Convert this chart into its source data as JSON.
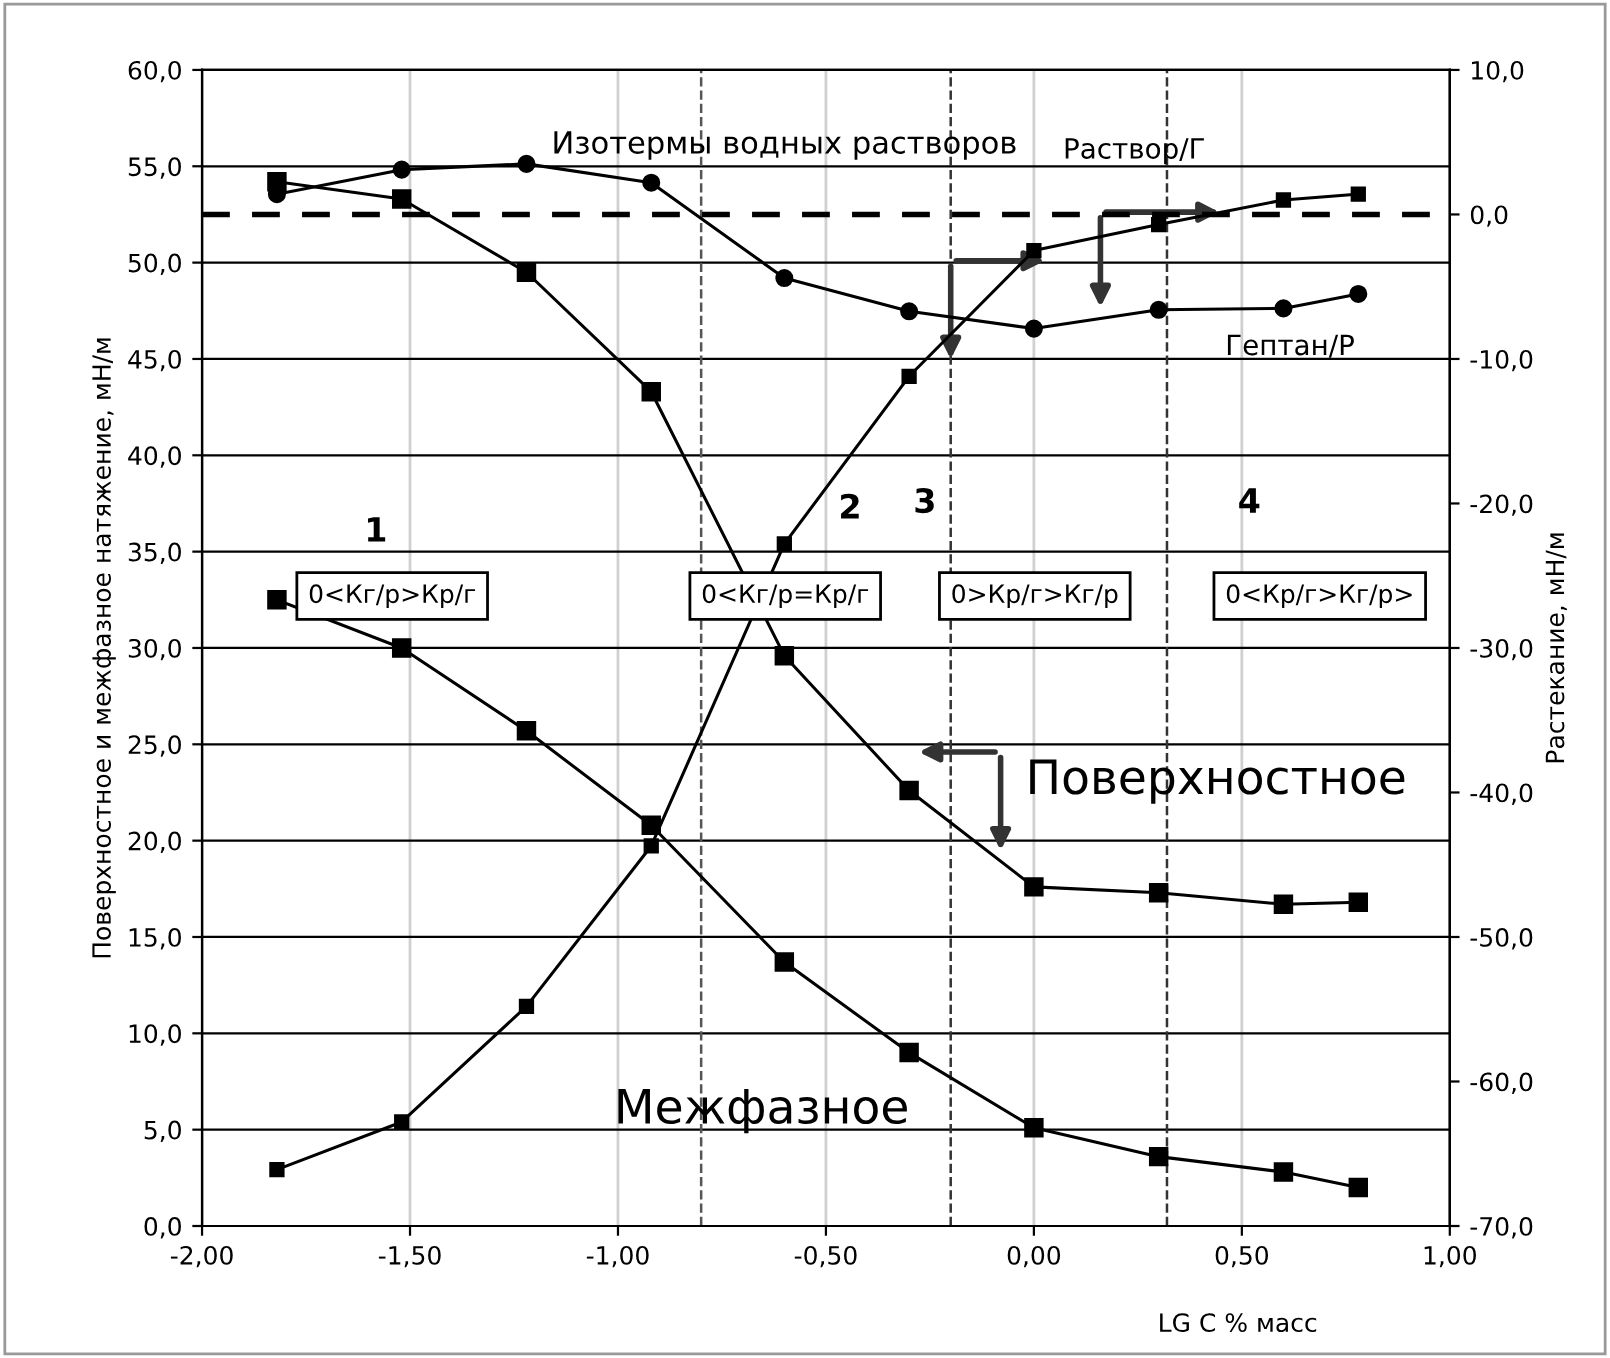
{
  "chart_data": {
    "type": "line",
    "title": "Изотермы водных растворов",
    "xlabel": "LG C % масс",
    "ylabel": "Поверхностное и межфазное натяжение, мН/м",
    "y2label": "Растекание, мН/м",
    "x": [
      -1.82,
      -1.52,
      -1.22,
      -0.92,
      -0.6,
      -0.3,
      0.0,
      0.3,
      0.6,
      0.78
    ],
    "series": [
      {
        "name": "Поверхностное",
        "color": "#000000",
        "marker": "square",
        "values": [
          54.2,
          53.3,
          49.5,
          43.3,
          29.6,
          22.6,
          17.6,
          17.3,
          16.7,
          16.8
        ]
      },
      {
        "name": "Межфазное",
        "color": "#000000",
        "marker": "square",
        "values": [
          32.5,
          30.0,
          25.7,
          20.8,
          13.7,
          9.0,
          5.1,
          3.6,
          2.8,
          2.0
        ]
      },
      {
        "name": "Раствор/Г",
        "color": "#000000",
        "marker": "square",
        "axis": "y2",
        "values": [
          -66.1,
          -62.8,
          -54.8,
          -43.7,
          -22.8,
          -11.2,
          -2.5,
          -0.7,
          1.0,
          1.4
        ]
      },
      {
        "name": "Гептан/Р",
        "color": "#000000",
        "marker": "circle",
        "axis": "y2",
        "values": [
          1.4,
          3.1,
          3.5,
          2.2,
          -4.4,
          -6.7,
          -7.9,
          -6.6,
          -6.5,
          -5.5
        ]
      }
    ],
    "xlim": [
      -2.0,
      1.0
    ],
    "xticks": [
      {
        "value": -2.0,
        "label": "-2,00"
      },
      {
        "value": -1.5,
        "label": "-1,50"
      },
      {
        "value": -1.0,
        "label": "-1,00"
      },
      {
        "value": -0.5,
        "label": "-0,50"
      },
      {
        "value": 0.0,
        "label": "0,00"
      },
      {
        "value": 0.5,
        "label": "0,50"
      },
      {
        "value": 1.0,
        "label": "1,00"
      }
    ],
    "ylim": [
      0,
      60
    ],
    "yticks": [
      {
        "value": 0,
        "label": "0,0"
      },
      {
        "value": 5,
        "label": "5,0"
      },
      {
        "value": 10,
        "label": "10,0"
      },
      {
        "value": 15,
        "label": "15,0"
      },
      {
        "value": 20,
        "label": "20,0"
      },
      {
        "value": 25,
        "label": "25,0"
      },
      {
        "value": 30,
        "label": "30,0"
      },
      {
        "value": 35,
        "label": "35,0"
      },
      {
        "value": 40,
        "label": "40,0"
      },
      {
        "value": 45,
        "label": "45,0"
      },
      {
        "value": 50,
        "label": "50,0"
      },
      {
        "value": 55,
        "label": "55,0"
      },
      {
        "value": 60,
        "label": "60,0"
      }
    ],
    "y2lim": [
      -70,
      10
    ],
    "y2ticks": [
      {
        "value": -70,
        "label": "-70,0"
      },
      {
        "value": -60,
        "label": "-60,0"
      },
      {
        "value": -50,
        "label": "-50,0"
      },
      {
        "value": -40,
        "label": "-40,0"
      },
      {
        "value": -30,
        "label": "-30,0"
      },
      {
        "value": -20,
        "label": "-20,0"
      },
      {
        "value": -10,
        "label": "-10,0"
      },
      {
        "value": 0,
        "label": "0,0"
      },
      {
        "value": 10,
        "label": "10,0"
      }
    ],
    "ref_lines": [
      {
        "axis": "y2",
        "value": 0,
        "color": "#000000",
        "line_style": "dashed"
      },
      {
        "axis": "x",
        "value": -0.8,
        "color": "#555555",
        "line_style": "dashed"
      },
      {
        "axis": "x",
        "value": -0.2,
        "color": "#333333",
        "line_style": "dashed"
      },
      {
        "axis": "x",
        "value": 0.32,
        "color": "#333333",
        "line_style": "dashed"
      }
    ],
    "annotations": [
      "1",
      "2",
      "3",
      "4",
      "0<Кг/р>Кр/г",
      "0<Кг/р=Кр/г",
      "0>Кр/г>Кг/р",
      "0<Кр/г>Кг/р>"
    ],
    "grid": true,
    "line_style": "solid"
  }
}
